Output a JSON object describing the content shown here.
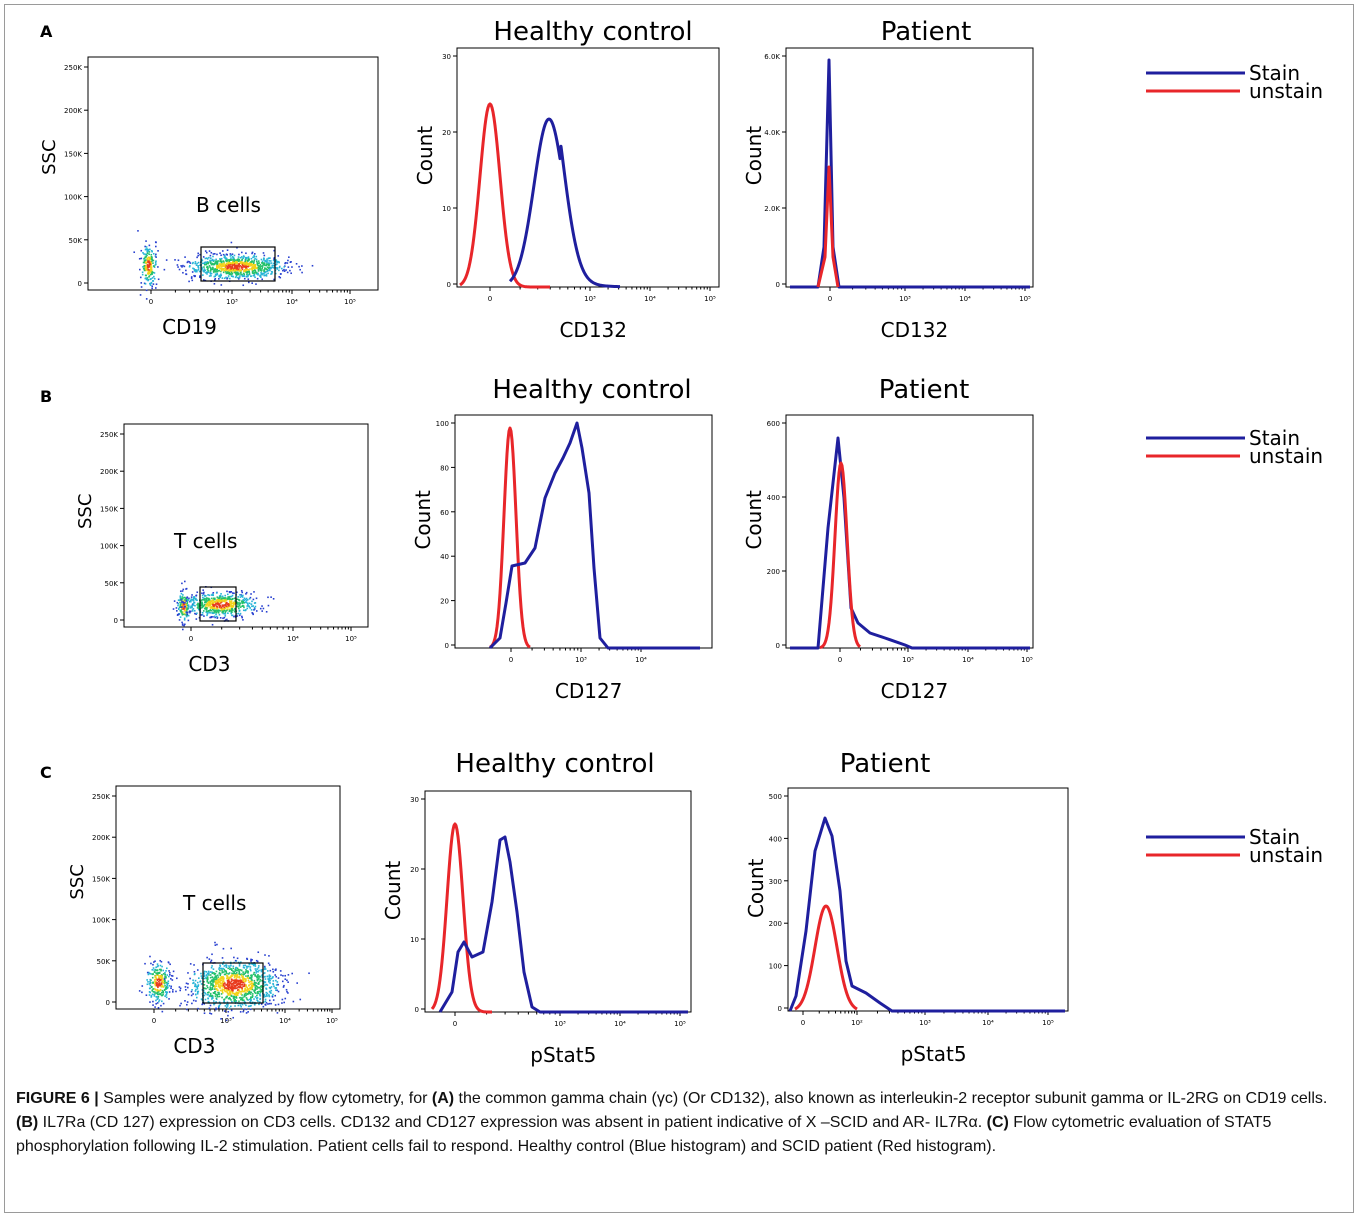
{
  "panels": [
    {
      "letter": "A",
      "scatter": {
        "y_label": "SSC",
        "x_label": "CD19",
        "gate_label": "B cells",
        "y_ticks": [
          "250K",
          "200K",
          "150K",
          "100K",
          "50K",
          "0"
        ],
        "x_ticks": [
          "0",
          "10³",
          "10⁴",
          "10⁵"
        ]
      },
      "healthy": {
        "title": "Healthy control",
        "x_label": "CD132",
        "y_label": "Count",
        "y_ticks": [
          "30",
          "20",
          "10",
          "0"
        ],
        "x_ticks": [
          "0",
          "10³",
          "10⁴",
          "10⁵"
        ]
      },
      "patient": {
        "title": "Patient",
        "x_label": "CD132",
        "y_label": "Count",
        "y_ticks": [
          "6.0K",
          "4.0K",
          "2.0K",
          "0"
        ],
        "x_ticks": [
          "0",
          "10³",
          "10⁴",
          "10⁵"
        ]
      },
      "legend": [
        "Stain",
        "unstain"
      ]
    },
    {
      "letter": "B",
      "scatter": {
        "y_label": "SSC",
        "x_label": "CD3",
        "gate_label": "T cells",
        "y_ticks": [
          "250K",
          "200K",
          "150K",
          "100K",
          "50K",
          "0"
        ],
        "x_ticks": [
          "0",
          "10⁴",
          "10⁵"
        ]
      },
      "healthy": {
        "title": "Healthy control",
        "x_label": "CD127",
        "y_label": "Count",
        "y_ticks": [
          "100",
          "80",
          "60",
          "40",
          "20",
          "0"
        ],
        "x_ticks": [
          "0",
          "10³",
          "10⁴"
        ]
      },
      "patient": {
        "title": "Patient",
        "x_label": "CD127",
        "y_label": "Count",
        "y_ticks": [
          "600",
          "400",
          "200",
          "0"
        ],
        "x_ticks": [
          "0",
          "10³",
          "10⁴",
          "10⁵"
        ]
      },
      "legend": [
        "Stain",
        "unstain"
      ]
    },
    {
      "letter": "C",
      "scatter": {
        "y_label": "SSC",
        "x_label": "CD3",
        "gate_label": "T cells",
        "y_ticks": [
          "250K",
          "200K",
          "150K",
          "100K",
          "50K",
          "0"
        ],
        "x_ticks": [
          "0",
          "10³",
          "10⁴",
          "10⁵"
        ]
      },
      "healthy": {
        "title": "Healthy control",
        "x_label": "pStat5",
        "y_label": "Count",
        "y_ticks": [
          "30",
          "20",
          "10",
          "0"
        ],
        "x_ticks": [
          "0",
          "10³",
          "10⁴",
          "10⁵"
        ]
      },
      "patient": {
        "title": "Patient",
        "x_label": "pStat5",
        "y_label": "Count",
        "y_ticks": [
          "500",
          "400",
          "300",
          "200",
          "100",
          "0"
        ],
        "x_ticks": [
          "0",
          "10²",
          "10³",
          "10⁴",
          "10⁵"
        ]
      },
      "legend": [
        "Stain",
        "unstain"
      ]
    }
  ],
  "colors": {
    "stain": "#1f1f9e",
    "unstain": "#e8262a",
    "axis": "#000000"
  },
  "caption": {
    "figure_label": "FIGURE 6 |",
    "p1": " Samples were analyzed by flow cytometry, for ",
    "a": "(A)",
    "p2": " the common gamma chain (γc) (Or CD132), also known as interleukin-2 receptor subunit gamma or IL-2RG on CD19 cells. ",
    "b": "(B)",
    "p3": " IL7Ra (CD 127) expression on CD3 cells. CD132 and CD127 expression was absent in patient indicative of X –SCID and AR- IL7Rα. ",
    "c": "(C)",
    "p4": " Flow cytometric evaluation of STAT5 phosphorylation following IL-2 stimulation. Patient cells fail to respond. Healthy control (Blue histogram) and SCID patient (Red histogram)."
  }
}
